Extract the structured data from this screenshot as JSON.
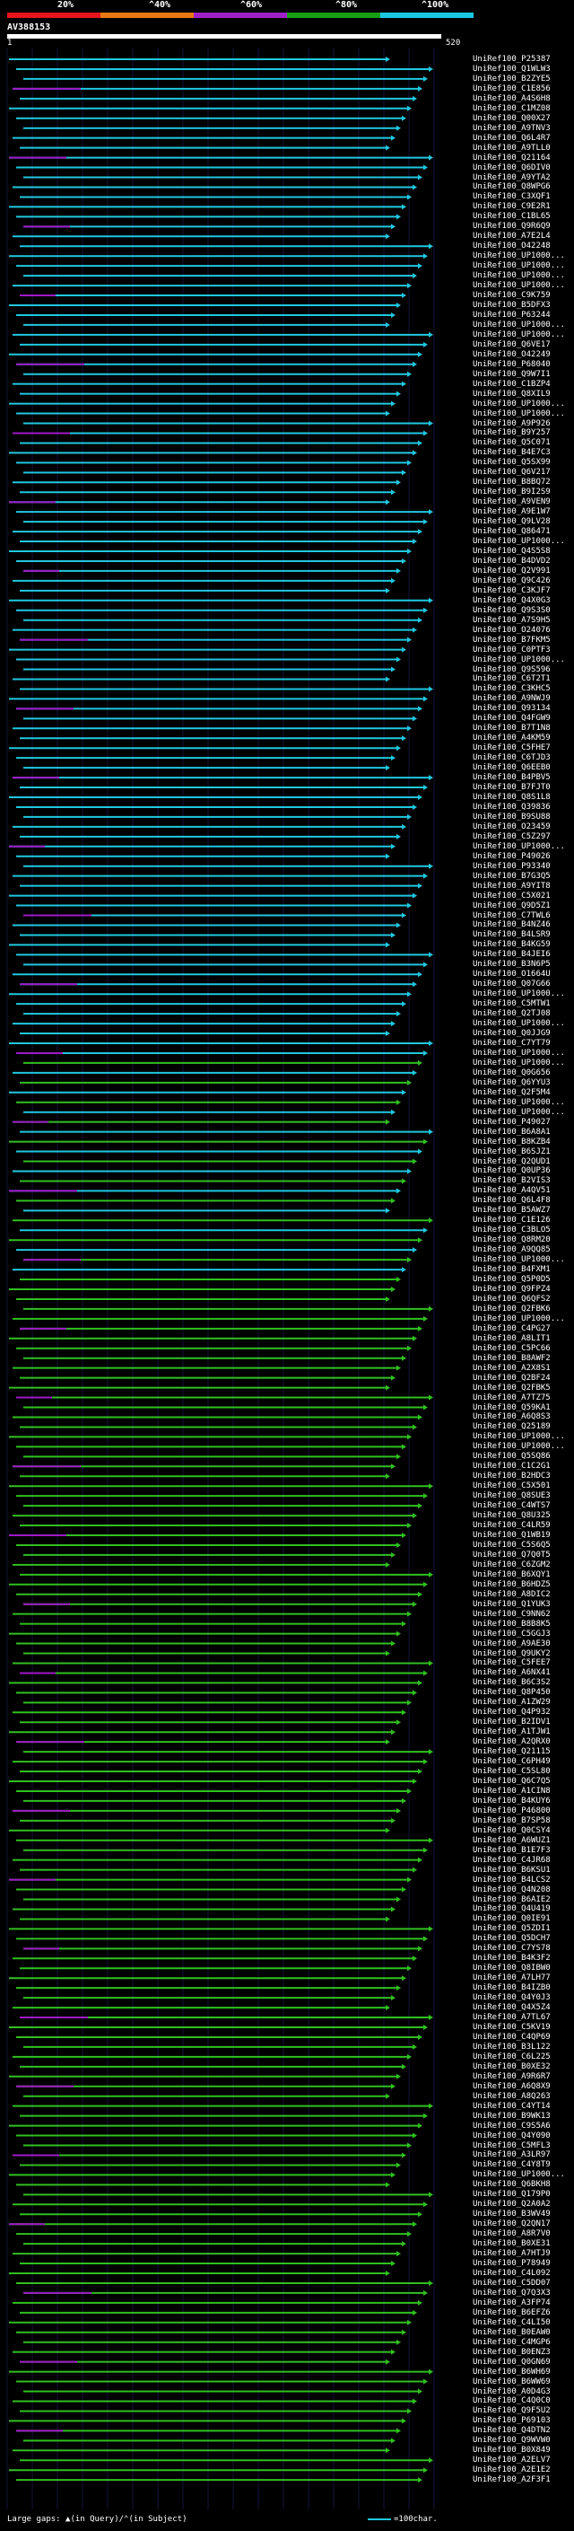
{
  "legend": {
    "labels": [
      "20%",
      "^40%",
      "^60%",
      "^80%",
      "^100%"
    ],
    "colors": [
      "#e8141c",
      "#e87814",
      "#a020c8",
      "#16a014",
      "#18c8e0"
    ]
  },
  "query": {
    "name": "AV388153",
    "start": "1",
    "end": "520"
  },
  "colors": {
    "hi": "#20c8e0",
    "mid": "#30c020",
    "low": "#a018c8",
    "bg": "#000000",
    "grid": "#14143c"
  },
  "hits": [
    "UniRef100_P25387",
    "UniRef100_Q1WLW3",
    "UniRef100_B2ZYE5",
    "UniRef100_C1E856",
    "UniRef100_A4S6H8",
    "UniRef100_C1MZ08",
    "UniRef100_Q00X27",
    "UniRef100_A9TNV3",
    "UniRef100_Q6L4R7",
    "UniRef100_A9TLL0",
    "UniRef100_Q21164",
    "UniRef100_Q6DIV0",
    "UniRef100_A9YTA2",
    "UniRef100_Q8WPG6",
    "UniRef100_C3XQF1",
    "UniRef100_C9E2R1",
    "UniRef100_C1BL65",
    "UniRef100_Q9R6Q9",
    "UniRef100_A7E2L4",
    "UniRef100_O42248",
    "UniRef100_UP1000...",
    "UniRef100_UP1000...",
    "UniRef100_UP1000...",
    "UniRef100_UP1000...",
    "UniRef100_C9K759",
    "UniRef100_B5DFX3",
    "UniRef100_P63244",
    "UniRef100_UP1000...",
    "UniRef100_UP1000...",
    "UniRef100_Q6VE17",
    "UniRef100_O42249",
    "UniRef100_P68040",
    "UniRef100_Q9W7I1",
    "UniRef100_C1BZP4",
    "UniRef100_Q8XIL9",
    "UniRef100_UP1000...",
    "UniRef100_UP1000...",
    "UniRef100_A9P926",
    "UniRef100_B9Y257",
    "UniRef100_Q5C071",
    "UniRef100_B4E7C3",
    "UniRef100_Q5SX99",
    "UniRef100_Q6V217",
    "UniRef100_B8BQ72",
    "UniRef100_B9I2S9",
    "UniRef100_A9VEN9",
    "UniRef100_A9E1W7",
    "UniRef100_Q9LV28",
    "UniRef100_Q86471",
    "UniRef100_UP1000...",
    "UniRef100_Q4S5S8",
    "UniRef100_B4DVD2",
    "UniRef100_Q2V991",
    "UniRef100_Q9C426",
    "UniRef100_C3KJF7",
    "UniRef100_Q4X0G3",
    "UniRef100_Q9S3S0",
    "UniRef100_A7S9H5",
    "UniRef100_O24076",
    "UniRef100_B7FKM5",
    "UniRef100_C0PTF3",
    "UniRef100_UP1000...",
    "UniRef100_Q9S596",
    "UniRef100_C6T2T1",
    "UniRef100_C3KHC5",
    "UniRef100_A9NWJ9",
    "UniRef100_Q93134",
    "UniRef100_Q4FGW9",
    "UniRef100_B7T1N8",
    "UniRef100_A4KM59",
    "UniRef100_C5FHE7",
    "UniRef100_C6TJD3",
    "UniRef100_Q6EEB0",
    "UniRef100_B4PBV5",
    "UniRef100_B7FJT0",
    "UniRef100_Q8S1L8",
    "UniRef100_Q39836",
    "UniRef100_B9SU88",
    "UniRef100_O23459",
    "UniRef100_C5Z297",
    "UniRef100_UP1000...",
    "UniRef100_P49026",
    "UniRef100_P93340",
    "UniRef100_B7G3Q5",
    "UniRef100_A9YIT8",
    "UniRef100_C5X021",
    "UniRef100_Q9D5Z1",
    "UniRef100_C7TWL6",
    "UniRef100_B4NZ46",
    "UniRef100_B4LSR9",
    "UniRef100_B4KG59",
    "UniRef100_B4JEI6",
    "UniRef100_B3N6P5",
    "UniRef100_O1664U",
    "UniRef100_Q07G66",
    "UniRef100_UP1000...",
    "UniRef100_C5MTW1",
    "UniRef100_Q2TJ08",
    "UniRef100_UP1000...",
    "UniRef100_Q0JJG9",
    "UniRef100_C7YT79",
    "UniRef100_UP1000...",
    "UniRef100_UP1000...",
    "UniRef100_Q0G656",
    "UniRef100_Q6YYU3",
    "UniRef100_Q2F5M4",
    "UniRef100_UP1000...",
    "UniRef100_UP1000...",
    "UniRef100_P49027",
    "UniRef100_B6A8A1",
    "UniRef100_B8KZB4",
    "UniRef100_B6SJZ1",
    "UniRef100_Q2QUD1",
    "UniRef100_Q0UP36",
    "UniRef100_B2VIS3",
    "UniRef100_A4QV51",
    "UniRef100_Q6L4F8",
    "UniRef100_B5AWZ7",
    "UniRef100_C1E126",
    "UniRef100_C3BLO5",
    "UniRef100_Q8RM20",
    "UniRef100_A9QQ85",
    "UniRef100_UP1000...",
    "UniRef100_B4FXM1",
    "UniRef100_Q5P0D5",
    "UniRef100_Q9FPZ4",
    "UniRef100_Q6QFS2",
    "UniRef100_Q2FBK6",
    "UniRef100_UP1000...",
    "UniRef100_C4PG27",
    "UniRef100_A8LIT1",
    "UniRef100_C5PC66",
    "UniRef100_B8AWF2",
    "UniRef100_A2X8S1",
    "UniRef100_Q2BF24",
    "UniRef100_Q2FBK5",
    "UniRef100_A7TZ75",
    "UniRef100_Q59KA1",
    "UniRef100_A6Q8S3",
    "UniRef100_Q25189",
    "UniRef100_UP1000...",
    "UniRef100_UP1000...",
    "UniRef100_Q5SQ86",
    "UniRef100_C1C2G1",
    "UniRef100_B2HDC3",
    "UniRef100_C5X501",
    "UniRef100_Q8SUE3",
    "UniRef100_C4WTS7",
    "UniRef100_Q8U325",
    "UniRef100_C4LR59",
    "UniRef100_Q1WB19",
    "UniRef100_C5S6Q5",
    "UniRef100_Q7Q0T5",
    "UniRef100_C6ZGM2",
    "UniRef100_B6XQY1",
    "UniRef100_B6HDZ5",
    "UniRef100_A8DIC2",
    "UniRef100_Q1YUK3",
    "UniRef100_C9NN62",
    "UniRef100_B8B8K5",
    "UniRef100_C5GGJ3",
    "UniRef100_A9AE30",
    "UniRef100_Q9UKY2",
    "UniRef100_C5FEE7",
    "UniRef100_A6NX41",
    "UniRef100_B6C3S2",
    "UniRef100_Q8P450",
    "UniRef100_A1ZW29",
    "UniRef100_Q4P932",
    "UniRef100_B2IDV1",
    "UniRef100_A1TJW1",
    "UniRef100_A2QRX0",
    "UniRef100_Q21115",
    "UniRef100_C6PH49",
    "UniRef100_C5SL80",
    "UniRef100_Q6C7Q5",
    "UniRef100_A1CIN8",
    "UniRef100_B4KUY6",
    "UniRef100_P46800",
    "UniRef100_B7SP58",
    "UniRef100_Q0CSY4",
    "UniRef100_A6WUZ1",
    "UniRef100_B1E7F3",
    "UniRef100_C4JR68",
    "UniRef100_B6KSU1",
    "UniRef100_B4LCS2",
    "UniRef100_Q4N208",
    "UniRef100_B6AIE2",
    "UniRef100_Q4U419",
    "UniRef100_Q0IE91",
    "UniRef100_Q5ZDI1",
    "UniRef100_Q5DCH7",
    "UniRef100_C7YS78",
    "UniRef100_B4K3F2",
    "UniRef100_Q8IBW0",
    "UniRef100_A7LH77",
    "UniRef100_B4IZB0",
    "UniRef100_Q4Y0J3",
    "UniRef100_Q4X5Z4",
    "UniRef100_A7TL67",
    "UniRef100_C5KV19",
    "UniRef100_C4QP69",
    "UniRef100_B3L122",
    "UniRef100_C6L225",
    "UniRef100_B0XE32",
    "UniRef100_A9R6R7",
    "UniRef100_A6Q8X9",
    "UniRef100_A8Q263",
    "UniRef100_C4YT14",
    "UniRef100_B9WK13",
    "UniRef100_C9S5A6",
    "UniRef100_Q4Y090",
    "UniRef100_C5MFL3",
    "UniRef100_A3LR97",
    "UniRef100_C4Y8T9",
    "UniRef100_UP1000...",
    "UniRef100_Q6BKH8",
    "UniRef100_Q179P0",
    "UniRef100_Q2A0A2",
    "UniRef100_B3WV49",
    "UniRef100_Q2QN17",
    "UniRef100_A8R7V0",
    "UniRef100_B0XE31",
    "UniRef100_A7HTJ9",
    "UniRef100_P78949",
    "UniRef100_C4L092",
    "UniRef100_C5DD07",
    "UniRef100_Q7Q3X3",
    "UniRef100_A3FP74",
    "UniRef100_B6EFZ6",
    "UniRef100_C4LI50",
    "UniRef100_B0EAW0",
    "UniRef100_C4MGP6",
    "UniRef100_B0ENZ3",
    "UniRef100_Q0GN69",
    "UniRef100_B6WH69",
    "UniRef100_B6WW69",
    "UniRef100_A0D4G3",
    "UniRef100_C4Q0C0",
    "UniRef100_Q9F5U2",
    "UniRef100_P69103",
    "UniRef100_Q4DTN2",
    "UniRef100_Q9WVW0",
    "UniRef100_B0X849",
    "UniRef100_A2ELV7",
    "UniRef100_A2E1E2",
    "UniRef100_A2F3F1"
  ],
  "footer": {
    "left": "Large gaps: ▲(in Query)/⌃(in Subject)",
    "right": "=100char."
  }
}
